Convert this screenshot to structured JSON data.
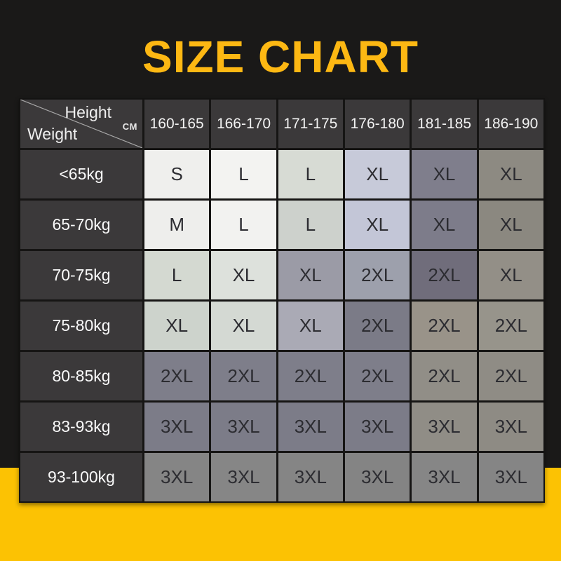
{
  "title": {
    "text": "SIZE CHART"
  },
  "colors": {
    "background": "#1a1918",
    "bottom_band": "#fcc203",
    "title": "#fdb813",
    "header_bg": "#3b393a",
    "header_text": "#f2f2f2",
    "cell_text": "#2c2c31",
    "grid_line": "#161514"
  },
  "table": {
    "corner": {
      "height_label": "Height",
      "unit_label": "CM",
      "weight_label": "Weight"
    },
    "columns": [
      "160-165",
      "166-170",
      "171-175",
      "176-180",
      "181-185",
      "186-190"
    ],
    "rows": [
      {
        "weight": "<65kg",
        "sizes": [
          "S",
          "L",
          "L",
          "XL",
          "XL",
          "XL"
        ],
        "cell_colors": [
          "#efefed",
          "#f3f3f1",
          "#d7dbd4",
          "#c7cad9",
          "#7f7e8c",
          "#8d8a82"
        ]
      },
      {
        "weight": "65-70kg",
        "sizes": [
          "M",
          "L",
          "L",
          "XL",
          "XL",
          "XL"
        ],
        "cell_colors": [
          "#eeeeec",
          "#f2f2f0",
          "#cdd1cc",
          "#c3c6d7",
          "#7d7c8a",
          "#8b8880"
        ]
      },
      {
        "weight": "70-75kg",
        "sizes": [
          "L",
          "XL",
          "XL",
          "2XL",
          "2XL",
          "XL"
        ],
        "cell_colors": [
          "#d4d9d1",
          "#dde1dc",
          "#9b9ba6",
          "#9da0ac",
          "#706d7b",
          "#938f87"
        ]
      },
      {
        "weight": "75-80kg",
        "sizes": [
          "XL",
          "XL",
          "XL",
          "2XL",
          "2XL",
          "2XL"
        ],
        "cell_colors": [
          "#cdd3cc",
          "#d4d9d3",
          "#aaaab5",
          "#7b7b87",
          "#999389",
          "#97948b"
        ]
      },
      {
        "weight": "80-85kg",
        "sizes": [
          "2XL",
          "2XL",
          "2XL",
          "2XL",
          "2XL",
          "2XL"
        ],
        "cell_colors": [
          "#7e7e8a",
          "#7e7e8a",
          "#7e7e8a",
          "#7e7e8a",
          "#918e87",
          "#8f8c85"
        ]
      },
      {
        "weight": "83-93kg",
        "sizes": [
          "3XL",
          "3XL",
          "3XL",
          "3XL",
          "3XL",
          "3XL"
        ],
        "cell_colors": [
          "#7c7c88",
          "#7c7c88",
          "#7c7c88",
          "#7c7c88",
          "#908d86",
          "#8e8b84"
        ]
      },
      {
        "weight": "93-100kg",
        "sizes": [
          "3XL",
          "3XL",
          "3XL",
          "3XL",
          "3XL",
          "3XL"
        ],
        "cell_colors": [
          "#858585",
          "#868686",
          "#858585",
          "#848484",
          "#868686",
          "#858585"
        ]
      }
    ]
  },
  "chart_data": {
    "type": "table",
    "title": "SIZE CHART",
    "row_axis_label": "Weight",
    "column_axis_label": "Height",
    "column_unit": "CM",
    "columns": [
      "160-165",
      "166-170",
      "171-175",
      "176-180",
      "181-185",
      "186-190"
    ],
    "rows": [
      "<65kg",
      "65-70kg",
      "70-75kg",
      "75-80kg",
      "80-85kg",
      "83-93kg",
      "93-100kg"
    ],
    "values": [
      [
        "S",
        "L",
        "L",
        "XL",
        "XL",
        "XL"
      ],
      [
        "M",
        "L",
        "L",
        "XL",
        "XL",
        "XL"
      ],
      [
        "L",
        "XL",
        "XL",
        "2XL",
        "2XL",
        "XL"
      ],
      [
        "XL",
        "XL",
        "XL",
        "2XL",
        "2XL",
        "2XL"
      ],
      [
        "2XL",
        "2XL",
        "2XL",
        "2XL",
        "2XL",
        "2XL"
      ],
      [
        "3XL",
        "3XL",
        "3XL",
        "3XL",
        "3XL",
        "3XL"
      ],
      [
        "3XL",
        "3XL",
        "3XL",
        "3XL",
        "3XL",
        "3XL"
      ]
    ]
  }
}
